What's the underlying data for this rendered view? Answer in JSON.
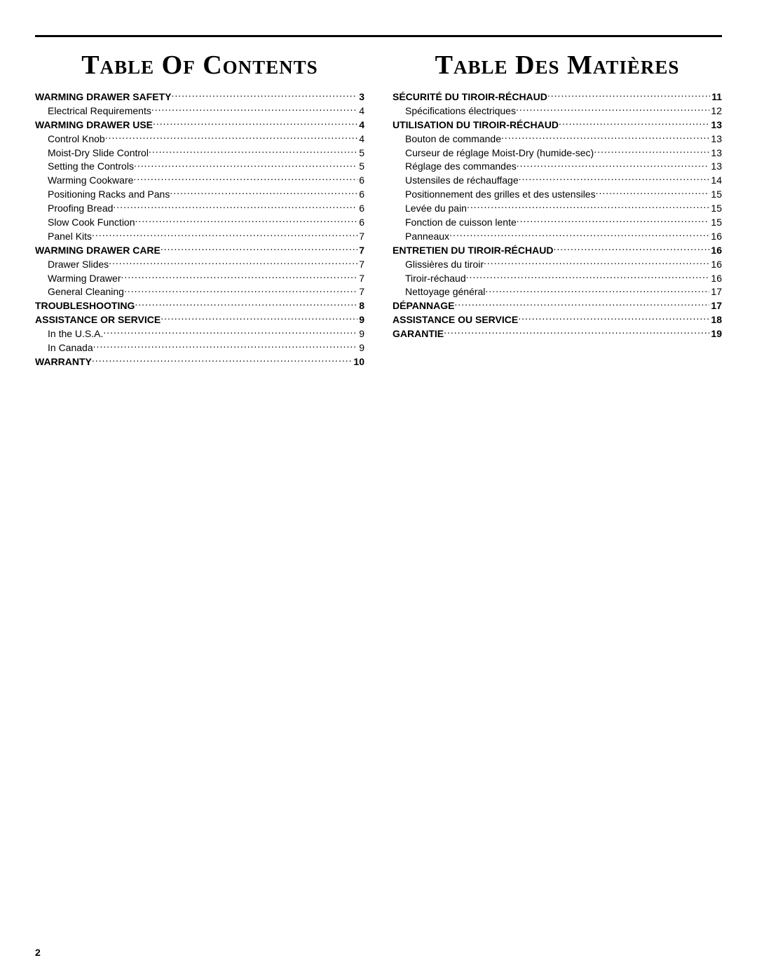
{
  "footer_page_number": "2",
  "left": {
    "title": "Table Of Contents",
    "entries": [
      {
        "type": "section",
        "label": "WARMING DRAWER SAFETY",
        "page": "3"
      },
      {
        "type": "sub",
        "label": "Electrical Requirements",
        "page": "4"
      },
      {
        "type": "section",
        "label": "WARMING DRAWER USE",
        "page": "4"
      },
      {
        "type": "sub",
        "label": "Control Knob",
        "page": "4"
      },
      {
        "type": "sub",
        "label": "Moist-Dry Slide Control",
        "page": "5"
      },
      {
        "type": "sub",
        "label": "Setting the Controls",
        "page": "5"
      },
      {
        "type": "sub",
        "label": "Warming Cookware",
        "page": "6"
      },
      {
        "type": "sub",
        "label": "Positioning Racks and Pans",
        "page": "6"
      },
      {
        "type": "sub",
        "label": "Proofing Bread",
        "page": "6"
      },
      {
        "type": "sub",
        "label": "Slow Cook Function",
        "page": "6"
      },
      {
        "type": "sub",
        "label": "Panel Kits",
        "page": "7"
      },
      {
        "type": "section",
        "label": "WARMING DRAWER CARE",
        "page": "7"
      },
      {
        "type": "sub",
        "label": "Drawer Slides",
        "page": "7"
      },
      {
        "type": "sub",
        "label": "Warming Drawer",
        "page": "7"
      },
      {
        "type": "sub",
        "label": "General Cleaning",
        "page": "7"
      },
      {
        "type": "section",
        "label": "TROUBLESHOOTING",
        "page": "8"
      },
      {
        "type": "section",
        "label": "ASSISTANCE OR SERVICE",
        "page": "9"
      },
      {
        "type": "sub",
        "label": "In the U.S.A.",
        "page": "9"
      },
      {
        "type": "sub",
        "label": "In Canada",
        "page": "9"
      },
      {
        "type": "section",
        "label": "WARRANTY",
        "page": "10"
      }
    ]
  },
  "right": {
    "title": "Table Des Matières",
    "entries": [
      {
        "type": "section",
        "label": "SÉCURITÉ DU TIROIR-RÉCHAUD",
        "page": "11"
      },
      {
        "type": "sub",
        "label": "Spécifications électriques",
        "page": "12"
      },
      {
        "type": "section",
        "label": "UTILISATION DU TIROIR-RÉCHAUD",
        "page": "13"
      },
      {
        "type": "sub",
        "label": "Bouton de commande",
        "page": "13"
      },
      {
        "type": "sub",
        "label": "Curseur de réglage Moist-Dry (humide-sec)",
        "page": "13"
      },
      {
        "type": "sub",
        "label": "Réglage des commandes",
        "page": "13"
      },
      {
        "type": "sub",
        "label": "Ustensiles de réchauffage",
        "page": "14"
      },
      {
        "type": "sub",
        "label": "Positionnement des grilles et des ustensiles",
        "page": "15"
      },
      {
        "type": "sub",
        "label": "Levée du pain",
        "page": "15"
      },
      {
        "type": "sub",
        "label": "Fonction de cuisson lente",
        "page": "15"
      },
      {
        "type": "sub",
        "label": "Panneaux",
        "page": "16"
      },
      {
        "type": "section",
        "label": "ENTRETIEN DU TIROIR-RÉCHAUD",
        "page": "16"
      },
      {
        "type": "sub",
        "label": "Glissières du tiroir",
        "page": "16"
      },
      {
        "type": "sub",
        "label": "Tiroir-réchaud",
        "page": "16"
      },
      {
        "type": "sub",
        "label": "Nettoyage général",
        "page": "17"
      },
      {
        "type": "section",
        "label": "DÉPANNAGE",
        "page": "17"
      },
      {
        "type": "section",
        "label": "ASSISTANCE OU SERVICE",
        "page": "18"
      },
      {
        "type": "section",
        "label": "GARANTIE",
        "page": "19"
      }
    ]
  }
}
